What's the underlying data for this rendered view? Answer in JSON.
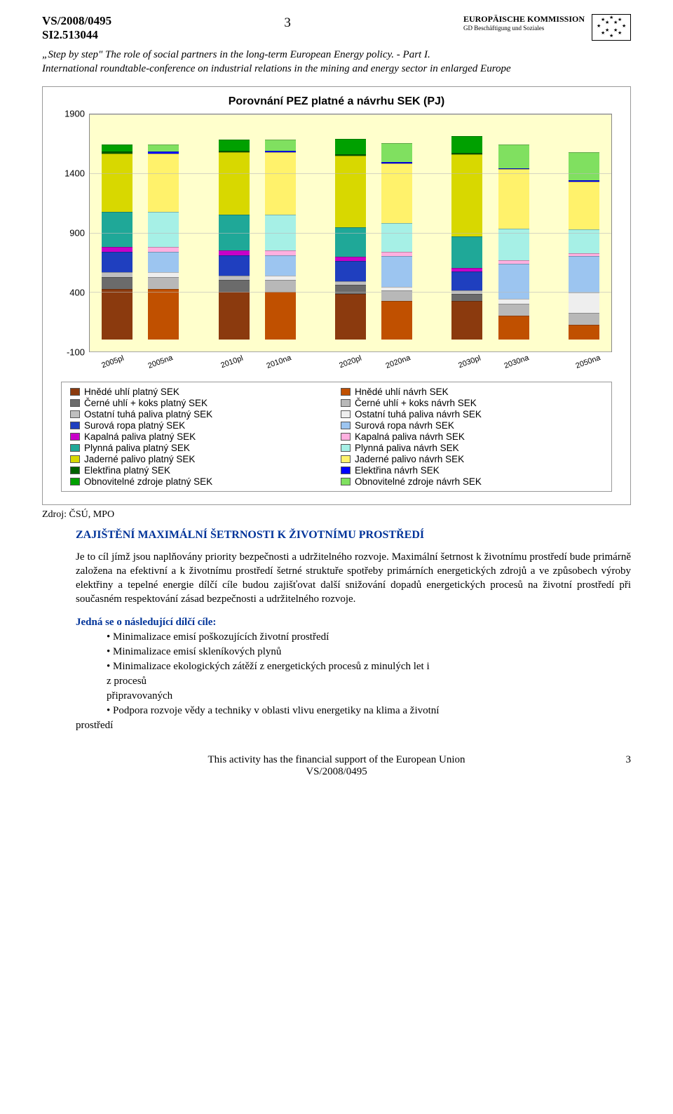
{
  "header": {
    "doc_id": "VS/2008/0495",
    "sub_id": "SI2.513044",
    "page_num_top": "3",
    "ec_line1": "EUROPÄISCHE KOMMISSION",
    "ec_line2": "GD Beschäftigung und Soziales"
  },
  "title": {
    "line1": "„Step by step\" The role of social partners in the long-term European Energy policy. - Part I.",
    "line2": "International roundtable-conference on industrial relations in the mining and energy sector in enlarged Europe"
  },
  "chart": {
    "title": "Porovnání PEZ platné a návrhu SEK (PJ)",
    "y_max": 1900,
    "y_min": -100,
    "y_ticks": [
      1900,
      1400,
      900,
      400,
      -100
    ],
    "x_labels": [
      "2005pl",
      "2005na",
      "2010pl",
      "2010na",
      "2020pl",
      "2020na",
      "2030pl",
      "2030na",
      "2050na"
    ],
    "pair_gaps_after": [
      1,
      3,
      5,
      7
    ],
    "colors": {
      "hnede_pl": "#8b3a0e",
      "hnede_na": "#c05000",
      "cerne_pl": "#6b6b6b",
      "cerne_na": "#b8b8b8",
      "ostatni_pl": "#bfbfbf",
      "ostatni_na": "#eeeeee",
      "surova_pl": "#1f3fbf",
      "surova_na": "#9cc5f0",
      "kapalna_pl": "#c800c8",
      "kapalna_na": "#ffb0e0",
      "plynna_pl": "#1fa898",
      "plynna_na": "#a6f0e6",
      "jaderne_pl": "#d8d800",
      "jaderne_na": "#fff26b",
      "elektrina_pl": "#006000",
      "elektrina_na": "#0000ff",
      "obnov_pl": "#00a000",
      "obnov_na": "#80e060"
    },
    "series_order": [
      "hnede",
      "cerne",
      "ostatni",
      "surova",
      "kapalna",
      "plynna",
      "jaderne",
      "elektrina",
      "obnov"
    ],
    "data": {
      "2005pl": {
        "type": "pl",
        "hnede": 420,
        "cerne": 100,
        "ostatni": 40,
        "surova": 175,
        "kapalna": 40,
        "plynna": 290,
        "jaderne": 490,
        "elektrina": 20,
        "obnov": 60
      },
      "2005na": {
        "type": "na",
        "hnede": 420,
        "cerne": 100,
        "ostatni": 40,
        "surova": 175,
        "kapalna": 40,
        "plynna": 290,
        "jaderne": 490,
        "elektrina": 20,
        "obnov": 60
      },
      "2010pl": {
        "type": "pl",
        "hnede": 400,
        "cerne": 95,
        "ostatni": 35,
        "surova": 175,
        "kapalna": 40,
        "plynna": 300,
        "jaderne": 520,
        "elektrina": 15,
        "obnov": 95
      },
      "2010na": {
        "type": "na",
        "hnede": 400,
        "cerne": 95,
        "ostatni": 35,
        "surova": 175,
        "kapalna": 40,
        "plynna": 300,
        "jaderne": 520,
        "elektrina": 15,
        "obnov": 95
      },
      "2020pl": {
        "type": "pl",
        "hnede": 380,
        "cerne": 75,
        "ostatni": 30,
        "surova": 170,
        "kapalna": 35,
        "plynna": 250,
        "jaderne": 600,
        "elektrina": 10,
        "obnov": 130
      },
      "2020na": {
        "type": "na",
        "hnede": 320,
        "cerne": 90,
        "ostatni": 30,
        "surova": 260,
        "kapalna": 30,
        "plynna": 245,
        "jaderne": 500,
        "elektrina": 10,
        "obnov": 160
      },
      "2030pl": {
        "type": "pl",
        "hnede": 320,
        "cerne": 60,
        "ostatni": 30,
        "surova": 160,
        "kapalna": 30,
        "plynna": 260,
        "jaderne": 690,
        "elektrina": 10,
        "obnov": 145
      },
      "2030na": {
        "type": "na",
        "hnede": 200,
        "cerne": 100,
        "ostatni": 40,
        "surova": 290,
        "kapalna": 30,
        "plynna": 265,
        "jaderne": 500,
        "elektrina": 10,
        "obnov": 200
      },
      "2050na": {
        "type": "na",
        "hnede": 120,
        "cerne": 100,
        "ostatni": 170,
        "surova": 310,
        "kapalna": 20,
        "plynna": 200,
        "jaderne": 400,
        "elektrina": 10,
        "obnov": 240
      }
    },
    "legend_left": [
      {
        "color": "hnede_pl",
        "label": "Hnědé uhlí platný SEK"
      },
      {
        "color": "cerne_pl",
        "label": "Černé uhlí + koks platný SEK"
      },
      {
        "color": "ostatni_pl",
        "label": "Ostatní tuhá paliva platný SEK"
      },
      {
        "color": "surova_pl",
        "label": "Surová ropa platný SEK"
      },
      {
        "color": "kapalna_pl",
        "label": "Kapalná paliva  platný SEK"
      },
      {
        "color": "plynna_pl",
        "label": "Plynná paliva platný SEK"
      },
      {
        "color": "jaderne_pl",
        "label": "Jaderné palivo platný SEK"
      },
      {
        "color": "elektrina_pl",
        "label": "Elektřina  platný SEK"
      },
      {
        "color": "obnov_pl",
        "label": "Obnovitelné zdroje platný SEK"
      }
    ],
    "legend_right": [
      {
        "color": "hnede_na",
        "label": "Hnědé uhlí návrh SEK"
      },
      {
        "color": "cerne_na",
        "label": "Černé uhlí + koks návrh SEK"
      },
      {
        "color": "ostatni_na",
        "label": "Ostatní tuhá paliva návrh SEK"
      },
      {
        "color": "surova_na",
        "label": "Surová ropa návrh SEK"
      },
      {
        "color": "kapalna_na",
        "label": "Kapalná paliva  návrh SEK"
      },
      {
        "color": "plynna_na",
        "label": "Plynná paliva návrh SEK"
      },
      {
        "color": "jaderne_na",
        "label": "Jaderné palivo návrh SEK"
      },
      {
        "color": "elektrina_na",
        "label": "Elektřina  návrh SEK"
      },
      {
        "color": "obnov_na",
        "label": "Obnovitelné zdroje návrh SEK"
      }
    ]
  },
  "source": "Zdroj: ČSÚ, MPO",
  "section_title": "ZAJIŠTĚNÍ MAXIMÁLNÍ ŠETRNOSTI K ŽIVOTNÍMU PROSTŘEDÍ",
  "para": "Je to cíl jímž jsou naplňovány priority bezpečnosti a udržitelného rozvoje. Maximální šetrnost k životnímu prostředí bude primárně založena na efektivní a k životnímu prostředí šetrné struktuře spotřeby primárních energetických zdrojů a ve způsobech výroby elektřiny a tepelné energie dílčí cíle budou zajišťovat další snižování dopadů energetických procesů na životní prostředí při současném respektování zásad bezpečnosti a udržitelného rozvoje.",
  "subhead": "Jedná se o následující dílčí cíle:",
  "bullets": [
    "Minimalizace emisí poškozujících životní prostředí",
    "Minimalizace emisí skleníkových plynů",
    "Minimalizace ekologických zátěží z energetických procesů z minulých let i z procesů",
    "připravovaných",
    "Podpora rozvoje vědy a techniky v oblasti vlivu energetiky na klima a životní prostředí"
  ],
  "footer": {
    "line1": "This activity has the financial support of the European Union",
    "line2": "VS/2008/0495",
    "page_num": "3"
  }
}
